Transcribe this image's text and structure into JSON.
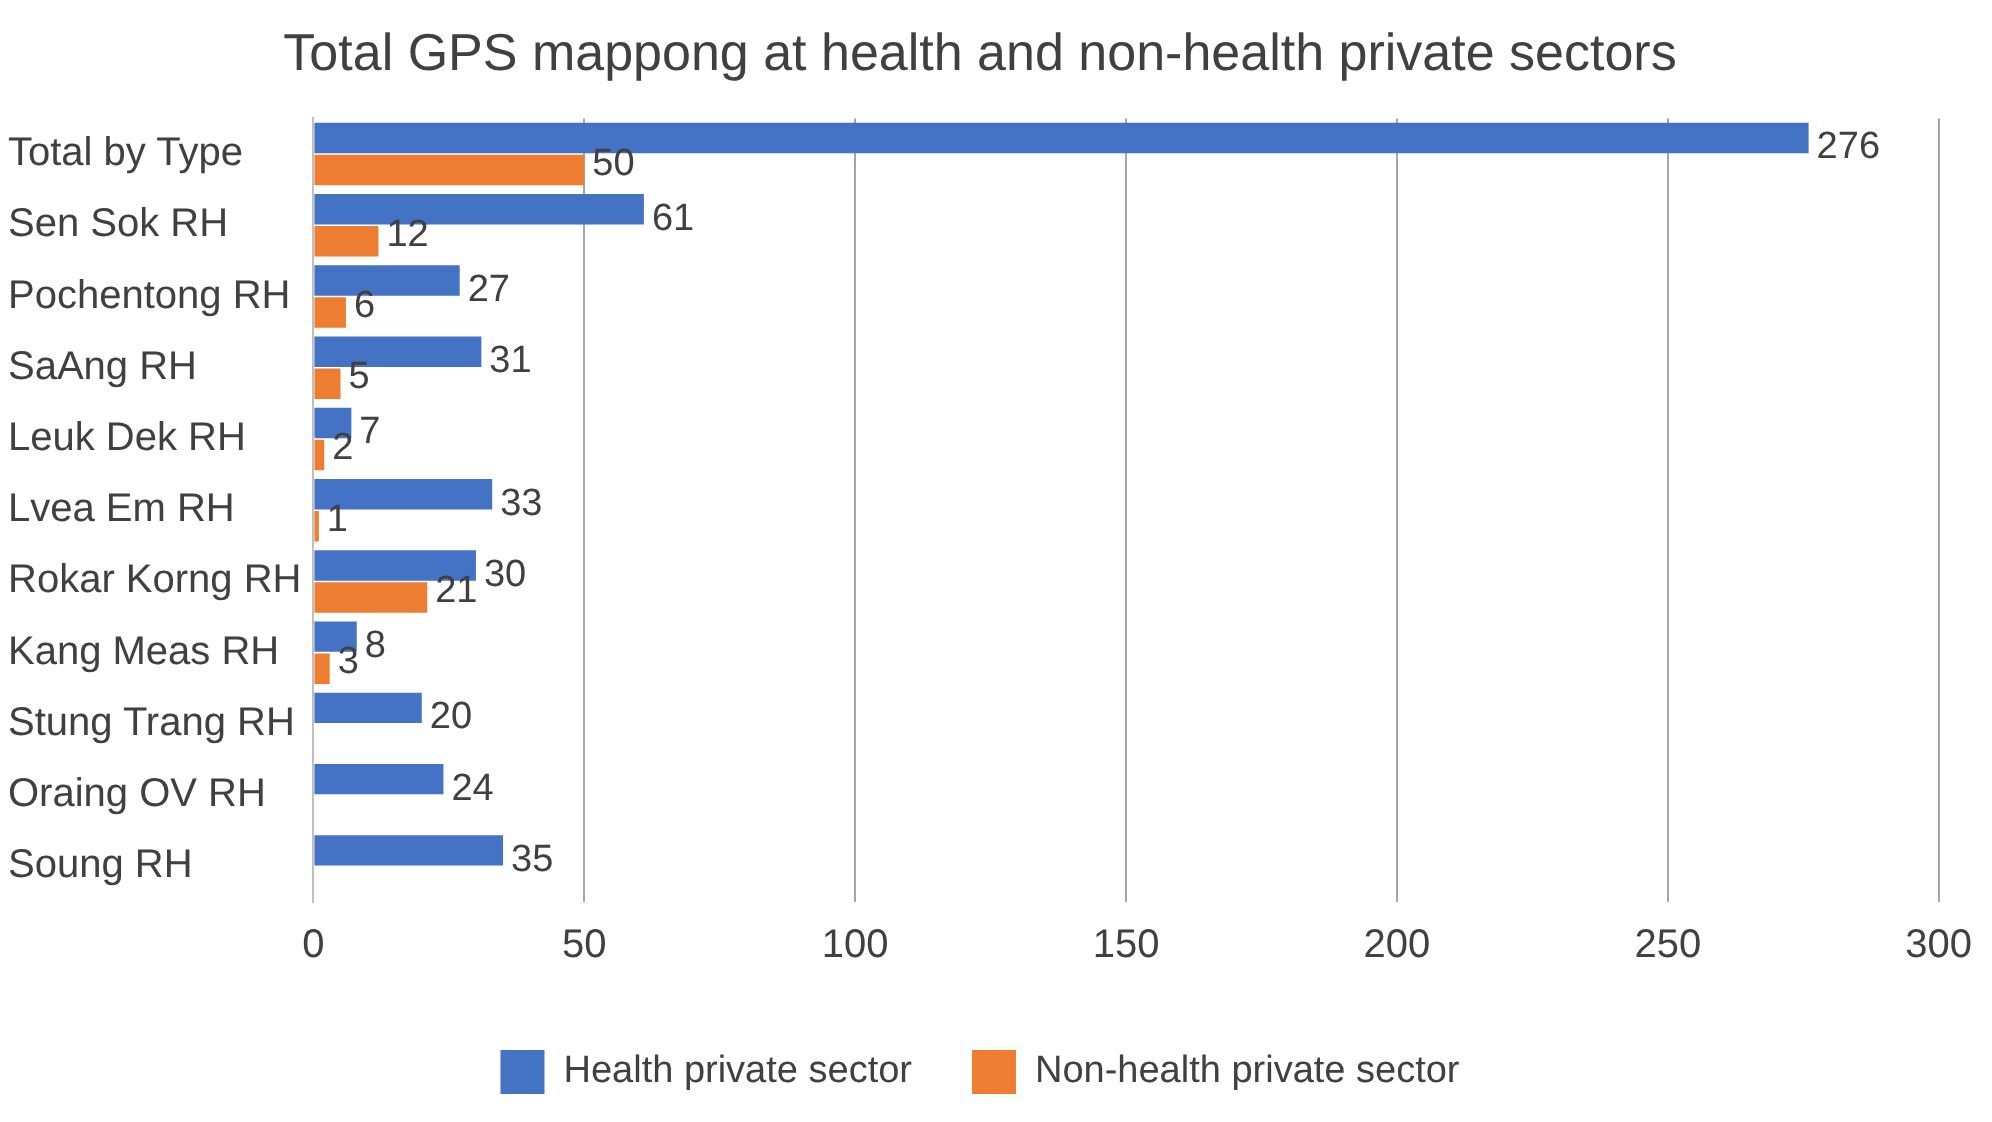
{
  "chart_data": {
    "type": "bar",
    "orientation": "horizontal",
    "title": "Total GPS mappong at health and non-health private sectors",
    "categories": [
      "Total by Type",
      "Sen Sok RH",
      "Pochentong RH",
      "SaAng RH",
      "Leuk Dek RH",
      "Lvea Em RH",
      "Rokar Korng RH",
      "Kang Meas RH",
      "Stung Trang RH",
      "Oraing OV RH",
      "Soung RH"
    ],
    "series": [
      {
        "name": "Health private sector",
        "color": "#4472c4",
        "values": [
          276,
          61,
          27,
          31,
          7,
          33,
          30,
          8,
          20,
          24,
          35
        ]
      },
      {
        "name": "Non-health private sector",
        "color": "#ed7d31",
        "values": [
          50,
          12,
          6,
          5,
          2,
          1,
          21,
          3,
          null,
          null,
          null
        ]
      }
    ],
    "xlim": [
      0,
      300
    ],
    "xticks": [
      0,
      50,
      100,
      150,
      200,
      250,
      300
    ],
    "grid": "x",
    "legend": "bottom",
    "data_labels": true
  }
}
